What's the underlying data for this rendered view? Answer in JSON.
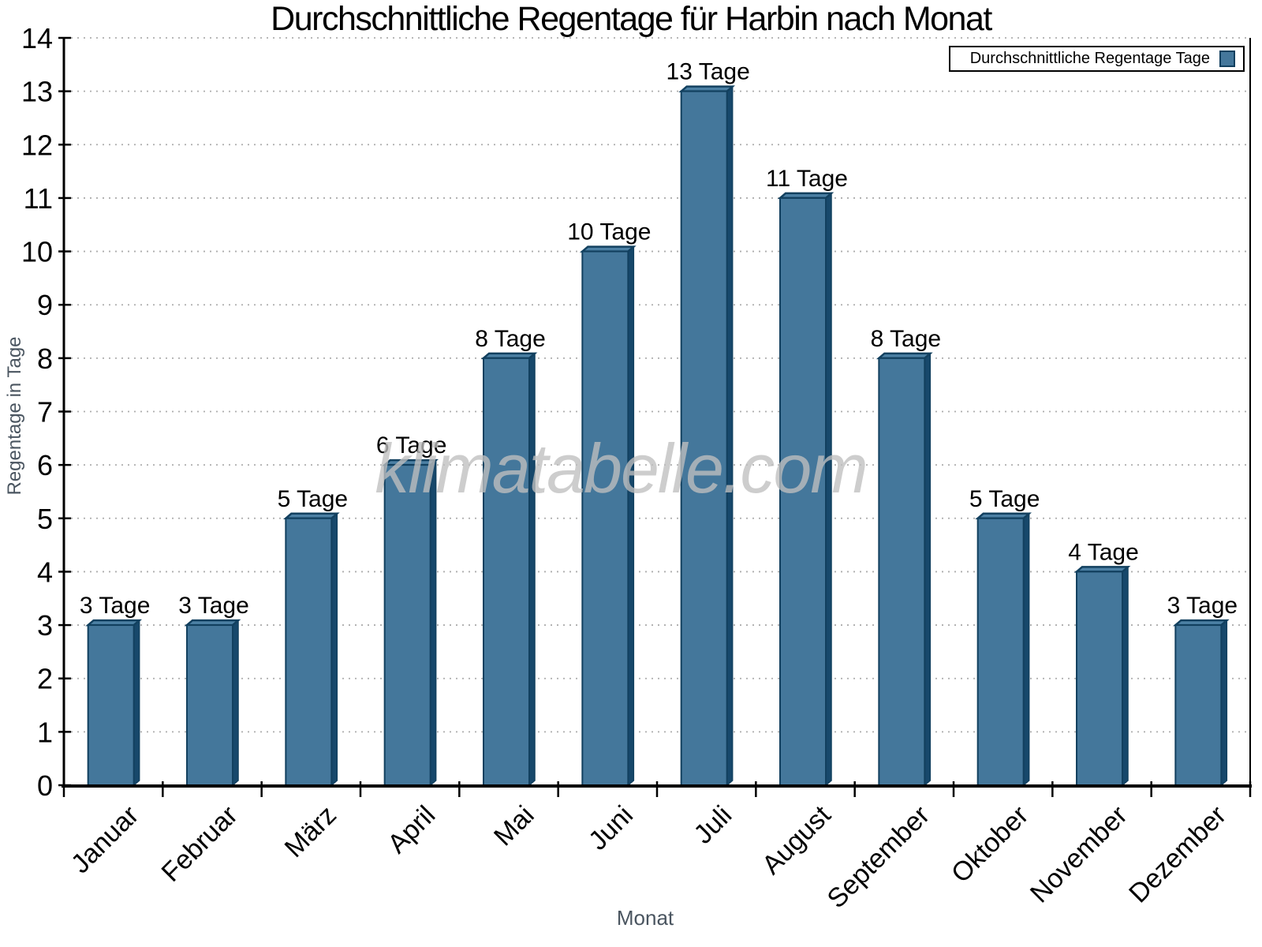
{
  "title": "Durchschnittliche Regentage für Harbin nach Monat",
  "legend": {
    "label": "Durchschnittliche Regentage Tage",
    "position": "top-right"
  },
  "watermark": "klimatabelle.com",
  "axes": {
    "x_label": "Monat",
    "y_label": "Regentage in Tage"
  },
  "chart_data": {
    "type": "bar",
    "title": "Durchschnittliche Regentage für Harbin nach Monat",
    "categories": [
      "Januar",
      "Februar",
      "März",
      "April",
      "Mai",
      "Juni",
      "Juli",
      "August",
      "September",
      "Oktober",
      "November",
      "Dezember"
    ],
    "values": [
      3,
      3,
      5,
      6,
      8,
      10,
      13,
      11,
      8,
      5,
      4,
      3
    ],
    "bar_labels": [
      "3 Tage",
      "3 Tage",
      "5 Tage",
      "6 Tage",
      "8 Tage",
      "10 Tage",
      "13 Tage",
      "11 Tage",
      "8 Tage",
      "5 Tage",
      "4 Tage",
      "3 Tage"
    ],
    "series_name": "Durchschnittliche Regentage Tage",
    "xlabel": "Monat",
    "ylabel": "Regentage in Tage",
    "ylim": [
      0,
      14
    ],
    "y_ticks": [
      0,
      1,
      2,
      3,
      4,
      5,
      6,
      7,
      8,
      9,
      10,
      11,
      12,
      13,
      14
    ],
    "grid": "horizontal-dotted",
    "legend_position": "top-right",
    "style": "3d-bars",
    "colors": {
      "bar_front": "#44779B",
      "bar_top": "#4C80A4",
      "bar_side": "#17486B",
      "bar_outline": "#12405F",
      "grid": "#ADADAD",
      "axis": "#000000",
      "tick_text": "#000000",
      "axis_title_text": "#4A5560",
      "watermark_text": "#BFBFBF"
    }
  }
}
